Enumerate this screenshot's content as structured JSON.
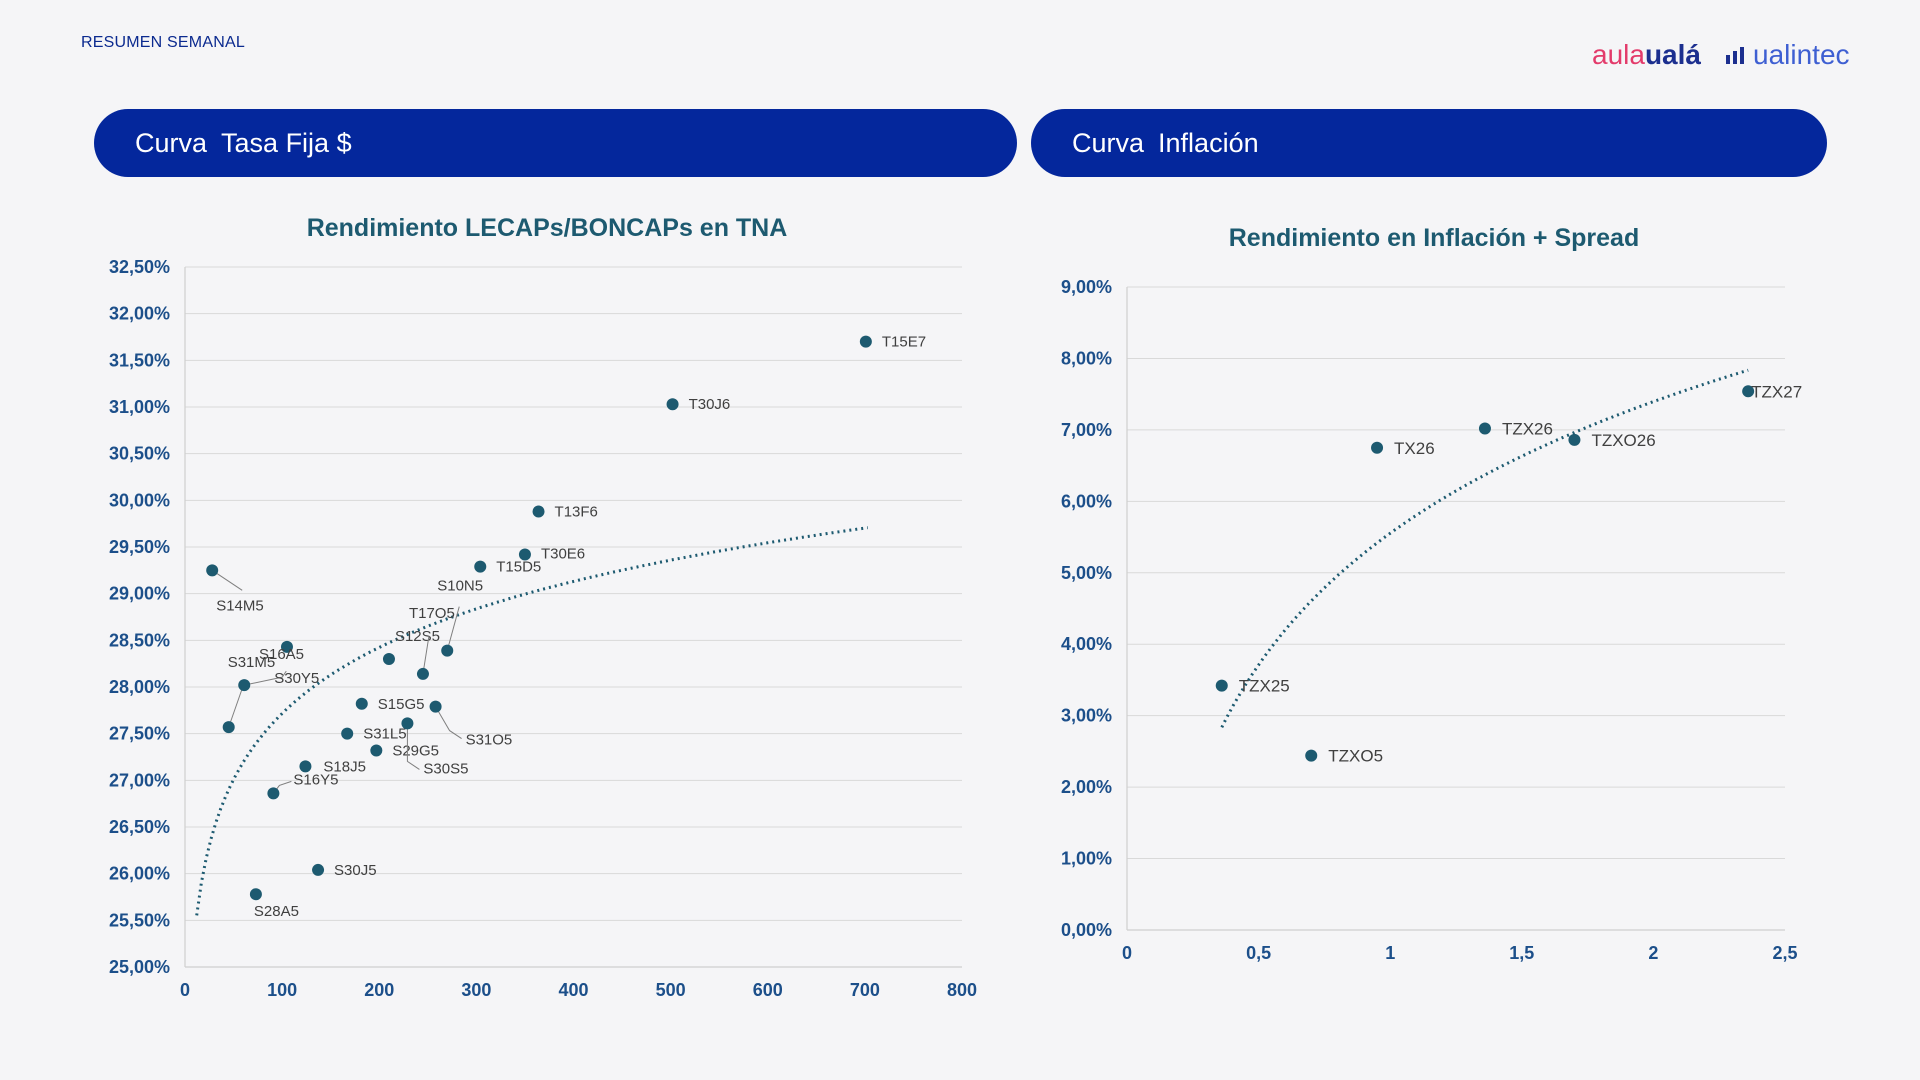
{
  "header": {
    "section_label": "RESUMEN SEMANAL",
    "brand_aula_part1": "aula",
    "brand_aula_part2": "ualá",
    "brand_ualintec": "ualintec"
  },
  "panels": {
    "left": {
      "word1": "Curva",
      "word2": "Tasa Fija $"
    },
    "right": {
      "word1": "Curva",
      "word2": "Inflación"
    }
  },
  "colors": {
    "pill": "#04279c",
    "points": "#1d5a70",
    "axis_text": "#1c4f8a",
    "brand_pink": "#e33b6b",
    "brand_navy": "#1c2f8f"
  },
  "chart_data": [
    {
      "type": "scatter",
      "title": "Rendimiento LECAPs/BONCAPs en TNA",
      "xlabel": "",
      "ylabel": "",
      "xlim": [
        0,
        800
      ],
      "ylim": [
        25.0,
        32.5
      ],
      "x_ticks": [
        "0",
        "100",
        "200",
        "300",
        "400",
        "500",
        "600",
        "700",
        "800"
      ],
      "y_ticks": [
        "25,00%",
        "25,50%",
        "26,00%",
        "26,50%",
        "27,00%",
        "27,50%",
        "28,00%",
        "28,50%",
        "29,00%",
        "29,50%",
        "30,00%",
        "30,50%",
        "31,00%",
        "31,50%",
        "32,00%",
        "32,50%"
      ],
      "grid": true,
      "trendline": "logarithmic",
      "points": [
        {
          "label": "S14M5",
          "x": 28,
          "y": 29.25
        },
        {
          "label": "S31M5",
          "x": 45,
          "y": 27.57
        },
        {
          "label": "S30Y5",
          "x": 61,
          "y": 28.02
        },
        {
          "label": "S28A5",
          "x": 73,
          "y": 25.78
        },
        {
          "label": "S16Y5",
          "x": 91,
          "y": 26.86
        },
        {
          "label": "S16A5",
          "x": 105,
          "y": 28.43
        },
        {
          "label": "S18J5",
          "x": 124,
          "y": 27.15
        },
        {
          "label": "S30J5",
          "x": 137,
          "y": 26.04
        },
        {
          "label": "S31L5",
          "x": 167,
          "y": 27.5
        },
        {
          "label": "S15G5",
          "x": 182,
          "y": 27.82
        },
        {
          "label": "S29G5",
          "x": 197,
          "y": 27.32
        },
        {
          "label": "S12S5",
          "x": 210,
          "y": 28.3
        },
        {
          "label": "S30S5",
          "x": 229,
          "y": 27.61
        },
        {
          "label": "T17O5",
          "x": 245,
          "y": 28.14
        },
        {
          "label": "S31O5",
          "x": 258,
          "y": 27.79
        },
        {
          "label": "S10N5",
          "x": 270,
          "y": 28.39
        },
        {
          "label": "T15D5",
          "x": 304,
          "y": 29.29
        },
        {
          "label": "T30E6",
          "x": 350,
          "y": 29.42
        },
        {
          "label": "T13F6",
          "x": 364,
          "y": 29.88
        },
        {
          "label": "T30J6",
          "x": 502,
          "y": 31.03
        },
        {
          "label": "T15E7",
          "x": 701,
          "y": 31.7
        }
      ]
    },
    {
      "type": "scatter",
      "title": "Rendimiento en Inflación + Spread",
      "xlabel": "",
      "ylabel": "",
      "xlim": [
        0,
        2.5
      ],
      "ylim": [
        0,
        9
      ],
      "x_ticks": [
        "0",
        "0,5",
        "1",
        "1,5",
        "2",
        "2,5"
      ],
      "y_ticks": [
        "0,00%",
        "1,00%",
        "2,00%",
        "3,00%",
        "4,00%",
        "5,00%",
        "6,00%",
        "7,00%",
        "8,00%",
        "9,00%"
      ],
      "grid": true,
      "trendline": "logarithmic",
      "points": [
        {
          "label": "TZX25",
          "x": 0.36,
          "y": 3.42
        },
        {
          "label": "TZXO5",
          "x": 0.7,
          "y": 2.44
        },
        {
          "label": "TX26",
          "x": 0.95,
          "y": 6.75
        },
        {
          "label": "TZX26",
          "x": 1.36,
          "y": 7.02
        },
        {
          "label": "TZXO26",
          "x": 1.7,
          "y": 6.86
        },
        {
          "label": "TZX27",
          "x": 2.36,
          "y": 7.54
        }
      ]
    }
  ]
}
